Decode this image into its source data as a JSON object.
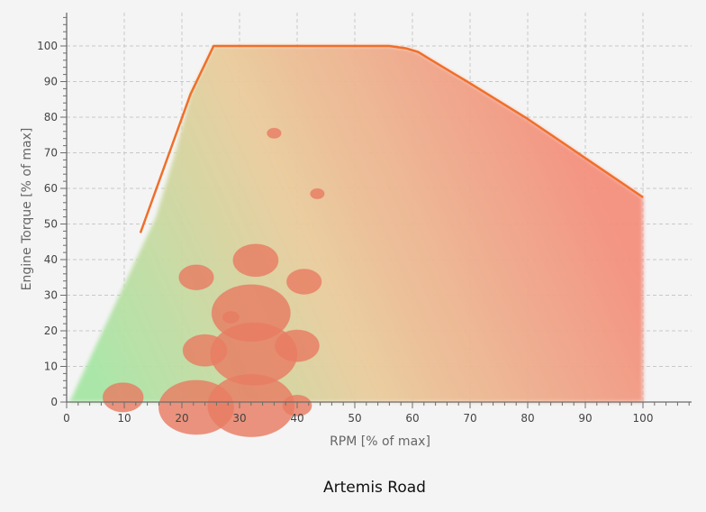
{
  "chart_data": {
    "type": "scatter",
    "title": "Artemis Road",
    "xlabel": "RPM [% of max]",
    "ylabel": "Engine Torque [% of max]",
    "xlim": [
      0,
      109
    ],
    "ylim": [
      0,
      109
    ],
    "x_ticks": [
      0,
      10,
      20,
      30,
      40,
      50,
      60,
      70,
      80,
      90,
      100
    ],
    "y_ticks": [
      0,
      10,
      20,
      30,
      40,
      50,
      60,
      70,
      80,
      90,
      100
    ],
    "grid": true,
    "torque_curve": {
      "x": [
        12.8,
        21.5,
        25.5,
        56,
        59,
        61,
        63,
        70,
        80,
        90,
        100
      ],
      "y": [
        47.5,
        86.5,
        100,
        100,
        99.3,
        98.3,
        96.3,
        89.5,
        79.5,
        68.5,
        57.5
      ]
    },
    "colors": {
      "curve": "#f06f2a",
      "bubble": "#e87c63",
      "low_load": "#a8e6a6",
      "mid_load": "#e9cd9d",
      "high_load": "#f4907e",
      "grid": "#c8c8c8",
      "axis": "#6c6c6c"
    },
    "bubbles": [
      {
        "x": 9.8,
        "y": 1.3,
        "size": 3.5
      },
      {
        "x": 22.5,
        "y": -1.5,
        "size": 6.5
      },
      {
        "x": 32.0,
        "y": -1.0,
        "size": 7.5
      },
      {
        "x": 40.0,
        "y": -1.0,
        "size": 2.5
      },
      {
        "x": 24.0,
        "y": 14.5,
        "size": 3.8
      },
      {
        "x": 32.5,
        "y": 13.5,
        "size": 7.5
      },
      {
        "x": 40.0,
        "y": 15.8,
        "size": 3.8
      },
      {
        "x": 32.0,
        "y": 25.0,
        "size": 6.8
      },
      {
        "x": 28.5,
        "y": 23.8,
        "size": 1.4
      },
      {
        "x": 22.5,
        "y": 35.0,
        "size": 3.0
      },
      {
        "x": 32.8,
        "y": 39.8,
        "size": 3.9
      },
      {
        "x": 41.2,
        "y": 33.8,
        "size": 3.0
      },
      {
        "x": 36.0,
        "y": 75.5,
        "size": 1.2
      },
      {
        "x": 43.5,
        "y": 58.5,
        "size": 1.2
      }
    ]
  }
}
